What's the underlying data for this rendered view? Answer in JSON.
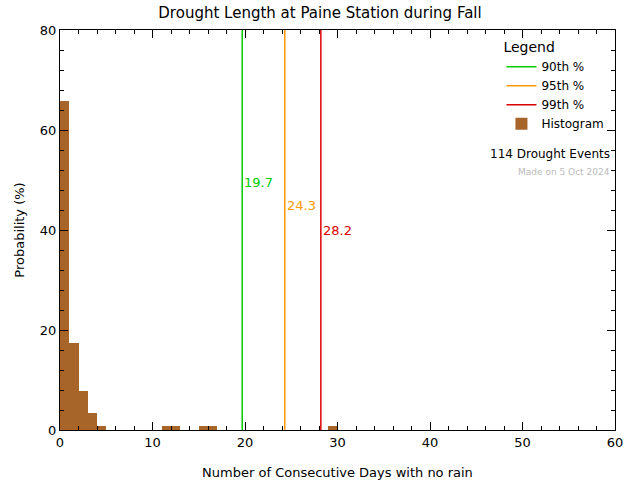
{
  "chart_data": {
    "type": "histogram",
    "title": "Drought Length at Paine Station during Fall",
    "x_label": "Number of Consecutive Days with no rain",
    "y_label": "Probability (%)",
    "bins": [
      0,
      1,
      2,
      3,
      4,
      5,
      6,
      7,
      8,
      9,
      10,
      11,
      12,
      13,
      14,
      15,
      16,
      17,
      18,
      19,
      20,
      21,
      22,
      23,
      24,
      25,
      26,
      27,
      28,
      29,
      30
    ],
    "values": [
      65.8,
      17.5,
      7.9,
      3.5,
      0.9,
      0,
      0,
      0,
      0,
      0,
      0,
      0.9,
      0.9,
      0,
      0,
      0.9,
      0.9,
      0,
      0,
      0,
      0,
      0,
      0,
      0,
      0,
      0,
      0,
      0,
      0,
      0.9
    ],
    "name": "Histogram",
    "color": "#a8652a",
    "percentiles": [
      {
        "name": "90th %",
        "color": "#00cc00",
        "value": 19.7
      },
      {
        "name": "95th %",
        "color": "#ff9900",
        "value": 24.3
      },
      {
        "name": "99th %",
        "color": "#dd0000",
        "value": 28.2
      }
    ],
    "xlim": [
      0,
      60
    ],
    "ylim": [
      0,
      80
    ],
    "xticks": [
      0,
      10,
      20,
      30,
      40,
      50,
      60
    ],
    "yticks": [
      0,
      20,
      40,
      60,
      80
    ],
    "grid": false,
    "legend": "upper right",
    "legend_title": "Legend",
    "annotations": [
      "114 Drought Events",
      "Made on 5 Oct 2024"
    ]
  }
}
